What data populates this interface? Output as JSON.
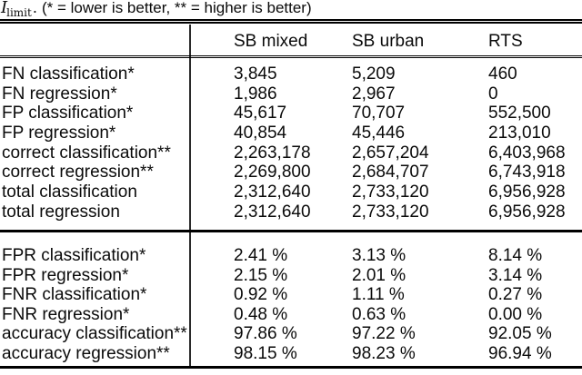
{
  "caption": {
    "symbol": "I",
    "subscript": "limit",
    "period": ".",
    "note": "(* = lower is better, ** = higher is better)"
  },
  "table": {
    "columns": [
      "SB mixed",
      "SB urban",
      "RTS"
    ],
    "section1": [
      {
        "label": "FN classification*",
        "values": [
          "3,845",
          "5,209",
          "460"
        ]
      },
      {
        "label": "FN regression*",
        "values": [
          "1,986",
          "2,967",
          "0"
        ]
      },
      {
        "label": "FP classification*",
        "values": [
          "45,617",
          "70,707",
          "552,500"
        ]
      },
      {
        "label": "FP regression*",
        "values": [
          "40,854",
          "45,446",
          "213,010"
        ]
      },
      {
        "label": "correct classification**",
        "values": [
          "2,263,178",
          "2,657,204",
          "6,403,968"
        ]
      },
      {
        "label": "correct regression**",
        "values": [
          "2,269,800",
          "2,684,707",
          "6,743,918"
        ]
      },
      {
        "label": "total classification",
        "values": [
          "2,312,640",
          "2,733,120",
          "6,956,928"
        ]
      },
      {
        "label": "total regression",
        "values": [
          "2,312,640",
          "2,733,120",
          "6,956,928"
        ]
      }
    ],
    "section2": [
      {
        "label": "FPR classification*",
        "values": [
          "2.41 %",
          "3.13 %",
          "8.14 %"
        ]
      },
      {
        "label": "FPR regression*",
        "values": [
          "2.15 %",
          "2.01 %",
          "3.14 %"
        ]
      },
      {
        "label": "FNR classification*",
        "values": [
          "0.92 %",
          "1.11 %",
          "0.27 %"
        ]
      },
      {
        "label": "FNR regression*",
        "values": [
          "0.48 %",
          "0.63 %",
          "0.00 %"
        ]
      },
      {
        "label": "accuracy classification**",
        "values": [
          "97.86 %",
          "97.22 %",
          "92.05 %"
        ]
      },
      {
        "label": "accuracy regression**",
        "values": [
          "98.15 %",
          "98.23 %",
          "96.94 %"
        ]
      }
    ]
  }
}
